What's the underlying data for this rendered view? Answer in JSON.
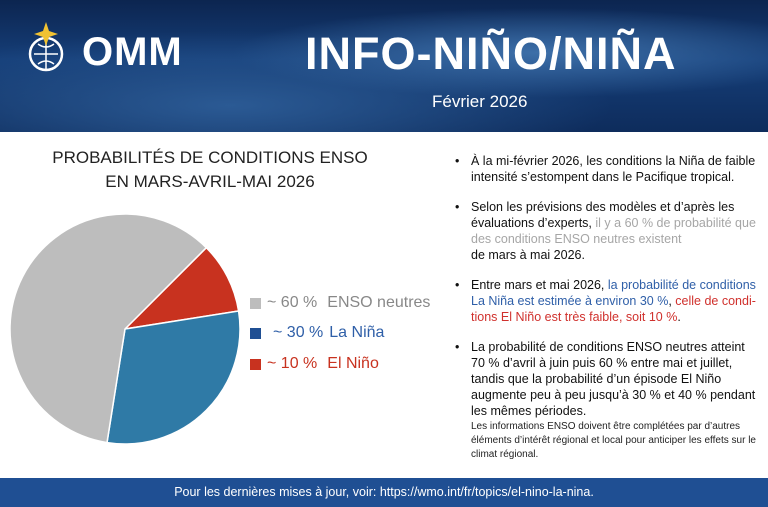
{
  "header": {
    "org": "OMM",
    "title": "INFO-NIÑO/NIÑA",
    "date": "Février 2026"
  },
  "chart_data": {
    "type": "pie",
    "title_line1": "PROBABILITÉS DE CONDITIONS ENSO",
    "title_line2": "EN MARS-AVRIL-MAI 2026",
    "slices": [
      {
        "name": "ENSO neutres",
        "label": "~ 60 %",
        "value": 60,
        "color": "#bdbdbd",
        "text_color": "#888888"
      },
      {
        "name": "La Niña",
        "label": "~ 30 %",
        "value": 30,
        "color": "#2f7aa6",
        "text_color": "#2f5fa8"
      },
      {
        "name": "El Niño",
        "label": "~ 10 %",
        "value": 10,
        "color": "#c8321f",
        "text_color": "#c8321f"
      }
    ],
    "legend": "right"
  },
  "bullets": {
    "b1": "À la mi-février 2026, les conditions la Niña de faible intensité s’estompent dans le Pacifique tropical.",
    "b2a": "Selon les prévisions des modèles et d’après les évaluations d’experts, ",
    "b2b": "il y a 60 % de probabilité que des conditions ENSO neutres existent",
    "b2c": " de mars à mai 2026.",
    "b3a": "Entre mars et mai 2026, ",
    "b3b": "la probabilité de conditions La Niña est estimée à environ 30 %",
    "b3c": ", ",
    "b3d": "celle de condi­tions El Niño est très faible, soit 10 %",
    "b3e": ".",
    "b4": "La probabilité de conditions ENSO neutres atteint 70 % d’avril à juin puis 60 % entre mai et juillet, tandis que la probabilité d’un épisode El Niño augmente peu à peu jusqu’à 30 % et 40 % pendant les mêmes périodes."
  },
  "note": "Les informations ENSO doivent être complétées par d’autres éléments d’intérêt régional et local pour anticiper les effets sur le climat régional.",
  "footer": "Pour les dernières mises à jour, voir: https://wmo.int/fr/topics/el-nino-la-nina."
}
